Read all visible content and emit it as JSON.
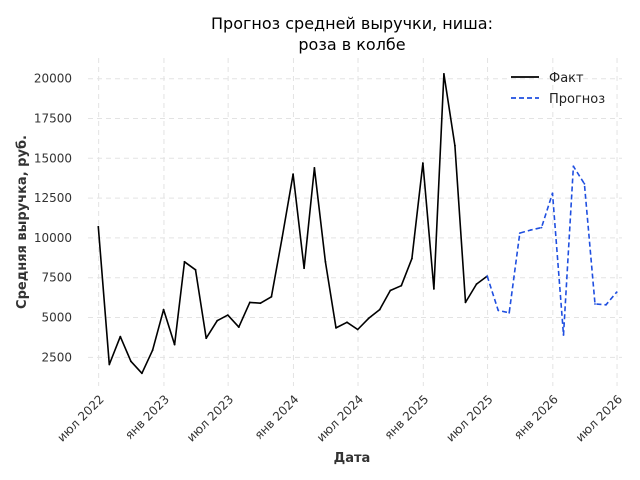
{
  "chart_data": {
    "type": "line",
    "title_line1": "Прогноз средней выручки, ниша:",
    "title_line2": "роза в колбе",
    "xlabel": "Дата",
    "ylabel": "Средняя выручка, руб.",
    "xlim": [
      "2022-06-01",
      "2026-07-15"
    ],
    "ylim": [
      700,
      21300
    ],
    "y_ticks": [
      2500,
      5000,
      7500,
      10000,
      12500,
      15000,
      17500,
      20000
    ],
    "y_tick_labels": [
      "2500",
      "5000",
      "7500",
      "10000",
      "12500",
      "15000",
      "17500",
      "20000"
    ],
    "x_ticks": [
      "2022-07-01",
      "2023-01-01",
      "2023-07-01",
      "2024-01-01",
      "2024-07-01",
      "2025-01-01",
      "2025-07-01",
      "2026-01-01",
      "2026-07-01"
    ],
    "x_tick_labels": [
      "июл 2022",
      "янв 2023",
      "июл 2023",
      "янв 2024",
      "июл 2024",
      "янв 2025",
      "июл 2025",
      "янв 2026",
      "июл 2026"
    ],
    "grid": true,
    "legend_position": "top-right",
    "series": [
      {
        "name": "Факт",
        "color": "#000000",
        "style": "solid",
        "points": [
          [
            "2022-06-30",
            10700
          ],
          [
            "2022-07-31",
            2050
          ],
          [
            "2022-08-31",
            3800
          ],
          [
            "2022-09-30",
            2250
          ],
          [
            "2022-10-31",
            1500
          ],
          [
            "2022-11-30",
            2950
          ],
          [
            "2022-12-31",
            5500
          ],
          [
            "2023-01-31",
            3300
          ],
          [
            "2023-02-28",
            8500
          ],
          [
            "2023-03-31",
            8000
          ],
          [
            "2023-04-30",
            3700
          ],
          [
            "2023-05-31",
            4800
          ],
          [
            "2023-06-30",
            5150
          ],
          [
            "2023-07-31",
            4400
          ],
          [
            "2023-08-31",
            5950
          ],
          [
            "2023-09-30",
            5900
          ],
          [
            "2023-10-31",
            6300
          ],
          [
            "2023-11-30",
            10000
          ],
          [
            "2023-12-31",
            14000
          ],
          [
            "2024-01-31",
            8100
          ],
          [
            "2024-02-29",
            14400
          ],
          [
            "2024-03-31",
            8500
          ],
          [
            "2024-04-30",
            4350
          ],
          [
            "2024-05-31",
            4700
          ],
          [
            "2024-06-30",
            4250
          ],
          [
            "2024-07-31",
            4950
          ],
          [
            "2024-08-31",
            5500
          ],
          [
            "2024-09-30",
            6700
          ],
          [
            "2024-10-31",
            7000
          ],
          [
            "2024-11-30",
            8700
          ],
          [
            "2024-12-31",
            14700
          ],
          [
            "2025-01-31",
            6800
          ],
          [
            "2025-02-28",
            20300
          ],
          [
            "2025-03-31",
            15800
          ],
          [
            "2025-04-30",
            5950
          ],
          [
            "2025-05-31",
            7100
          ],
          [
            "2025-06-30",
            7600
          ]
        ]
      },
      {
        "name": "Прогноз",
        "color": "#1f4fe0",
        "style": "dashed",
        "points": [
          [
            "2025-06-30",
            7600
          ],
          [
            "2025-07-31",
            5450
          ],
          [
            "2025-08-31",
            5300
          ],
          [
            "2025-09-30",
            10300
          ],
          [
            "2025-10-31",
            10500
          ],
          [
            "2025-11-30",
            10650
          ],
          [
            "2025-12-31",
            12800
          ],
          [
            "2026-01-31",
            3900
          ],
          [
            "2026-02-28",
            14500
          ],
          [
            "2026-03-31",
            13400
          ],
          [
            "2026-04-30",
            5850
          ],
          [
            "2026-05-31",
            5800
          ],
          [
            "2026-06-30",
            6600
          ]
        ]
      }
    ]
  }
}
